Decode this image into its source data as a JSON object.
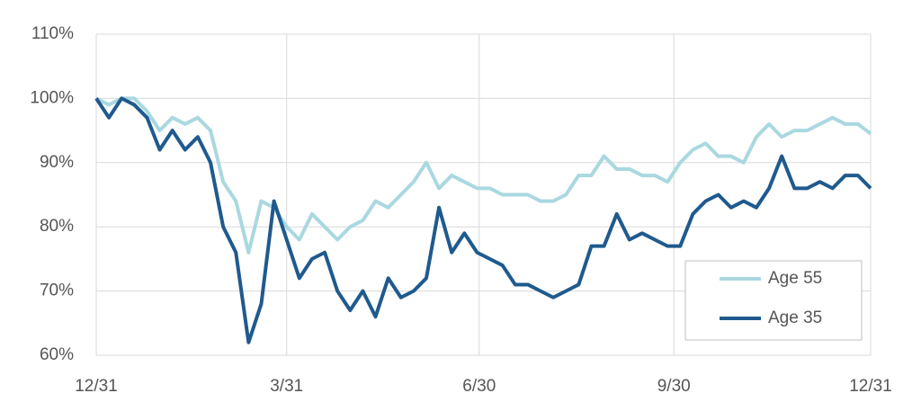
{
  "chart_data": {
    "type": "line",
    "x": [
      0,
      6,
      12,
      18,
      24,
      30,
      36,
      42,
      48,
      54,
      60,
      66,
      72,
      78,
      84,
      90,
      96,
      102,
      108,
      114,
      120,
      126,
      132,
      138,
      144,
      150,
      156,
      162,
      168,
      174,
      180,
      186,
      192,
      198,
      204,
      210,
      216,
      222,
      228,
      234,
      240,
      246,
      252,
      258,
      264,
      270,
      276,
      282,
      288,
      294,
      300,
      306,
      312,
      318,
      324,
      330,
      336,
      342,
      348,
      354,
      360,
      366
    ],
    "series": [
      {
        "name": "Age 55",
        "color": "#a9d8e0",
        "values": [
          100,
          99,
          100,
          100,
          98,
          95,
          97,
          96,
          97,
          95,
          87,
          84,
          76,
          84,
          83,
          80,
          78,
          82,
          80,
          78,
          80,
          81,
          84,
          83,
          85,
          87,
          90,
          86,
          88,
          87,
          86,
          86,
          85,
          85,
          85,
          84,
          84,
          85,
          88,
          88,
          91,
          89,
          89,
          88,
          88,
          87,
          90,
          92,
          93,
          91,
          91,
          90,
          94,
          96,
          94,
          95,
          95,
          96,
          97,
          96,
          96,
          94.5
        ]
      },
      {
        "name": "Age 35",
        "color": "#1f5a8e",
        "values": [
          100,
          97,
          100,
          99,
          97,
          92,
          95,
          92,
          94,
          90,
          80,
          76,
          62,
          68,
          84,
          78,
          72,
          75,
          76,
          70,
          67,
          70,
          66,
          72,
          69,
          70,
          72,
          83,
          76,
          79,
          76,
          75,
          74,
          71,
          71,
          70,
          69,
          70,
          71,
          77,
          77,
          82,
          78,
          79,
          78,
          77,
          77,
          82,
          84,
          85,
          83,
          84,
          83,
          86,
          91,
          86,
          86,
          87,
          86,
          88,
          88,
          86
        ]
      }
    ],
    "xlim": [
      0,
      366
    ],
    "xticks": [
      {
        "value": 0,
        "label": "12/31"
      },
      {
        "value": 90,
        "label": "3/31"
      },
      {
        "value": 181,
        "label": "6/30"
      },
      {
        "value": 273,
        "label": "9/30"
      },
      {
        "value": 366,
        "label": "12/31"
      }
    ],
    "ylim": [
      60,
      110
    ],
    "yticks": [
      {
        "value": 60,
        "label": "60%"
      },
      {
        "value": 70,
        "label": "70%"
      },
      {
        "value": 80,
        "label": "80%"
      },
      {
        "value": 90,
        "label": "90%"
      },
      {
        "value": 100,
        "label": "100%"
      },
      {
        "value": 110,
        "label": "110%"
      }
    ],
    "grid": true,
    "legend": "lower right"
  }
}
